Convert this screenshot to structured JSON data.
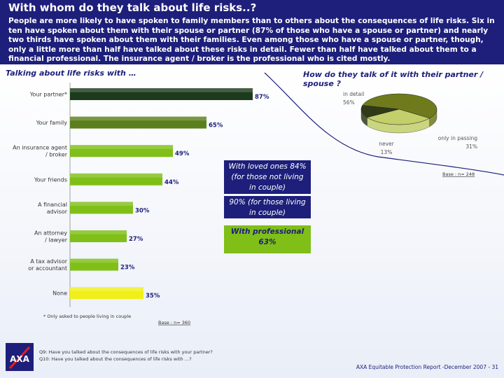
{
  "header": {
    "title": "With whom do they talk about life risks..?",
    "intro": "People are more likely to have spoken to family members than to others about the consequences of life risks. Six in ten have spoken about them with their spouse or partner (87% of those who have a spouse or partner) and nearly two thirds have spoken about them with their families. Even among those who have a spouse or partner, though, only a little more than half have talked about these risks in detail. Fewer than half have talked about them to a financial professional. The insurance agent / broker is the professional who is cited mostly."
  },
  "sections": {
    "bar_title": "Talking about life risks with …",
    "pie_title": "How do they talk of it with their partner / spouse ?"
  },
  "colors": {
    "header_bg": "#1d1f7a",
    "bar_dark": "#1c3b1c",
    "bar_mid": "#5b7f1c",
    "bar_light": "#7fbf18",
    "bar_yellow": "#f0f018",
    "pie_detail": "#6f7a1c",
    "pie_passing": "#c2cf6a",
    "pie_never": "#303a18"
  },
  "chart_data": [
    {
      "type": "bar",
      "orientation": "horizontal",
      "categories": [
        "Your partner*",
        "Your family",
        "An insurance agent / broker",
        "Your friends",
        "A financial advisor",
        "An attorney / lawyer",
        "A tax advisor or accountant",
        "None"
      ],
      "values": [
        87,
        65,
        49,
        44,
        30,
        27,
        23,
        35
      ],
      "value_labels": [
        "87%",
        "65%",
        "49%",
        "44%",
        "30%",
        "27%",
        "23%",
        "35%"
      ],
      "xlim": [
        0,
        100
      ],
      "base_note": "Base : n= 360",
      "grid": false
    },
    {
      "type": "pie",
      "labels": [
        "in detail",
        "only in passing",
        "never"
      ],
      "values": [
        56,
        31,
        13
      ],
      "value_labels": [
        "56%",
        "31%",
        "13%"
      ],
      "base_note": "Base : n= 248"
    }
  ],
  "callouts": {
    "not_couple": "With loved ones 84% (for those not living in couple)",
    "couple": "90% (for those living in couple)",
    "professional": "With professional 63%"
  },
  "footnotes": {
    "asterisk": "* Only asked to people living in couple",
    "q9": "Q9: Have you talked about the consequences of life risks with your partner?",
    "q10": "Q10: Have you talked about the consequences of life risks with …?",
    "footer": "AXA Equitable Protection Report -December 2007 - 31"
  },
  "logo": {
    "text": "AXA"
  }
}
